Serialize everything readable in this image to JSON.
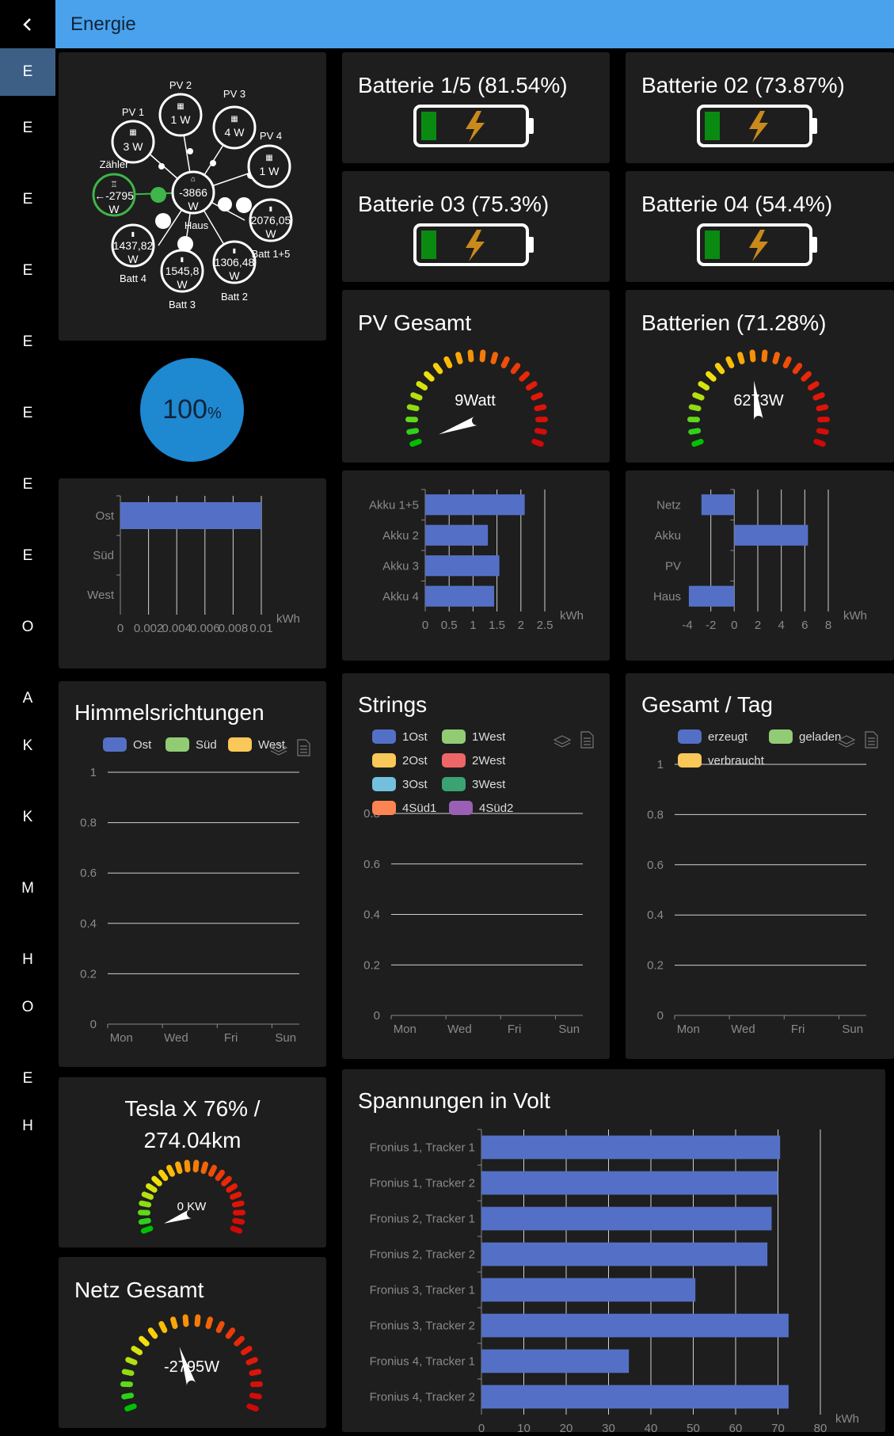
{
  "header": {
    "title": "Energie"
  },
  "sidebar": {
    "items": [
      "E",
      "E",
      "E",
      "E",
      "E",
      "E",
      "E",
      "E",
      "O",
      "A",
      "K",
      "K",
      "M",
      "H",
      "O",
      "E",
      "H"
    ]
  },
  "flow": {
    "pv1": {
      "label": "PV 1",
      "value": "3 W"
    },
    "pv2": {
      "label": "PV 2",
      "value": "1 W"
    },
    "pv3": {
      "label": "PV 3",
      "value": "4 W"
    },
    "pv4": {
      "label": "PV 4",
      "value": "1 W"
    },
    "grid": {
      "label": "Zähler",
      "value": "←-2795",
      "unit": "W"
    },
    "house": {
      "label": "Haus",
      "value": "-3866",
      "unit": "W"
    },
    "batt1": {
      "label": "Batt 1+5",
      "value": "2076,05",
      "unit": "W"
    },
    "batt2": {
      "label": "Batt 2",
      "value": "1306,48",
      "unit": "W"
    },
    "batt3": {
      "label": "Batt 3",
      "value": "1545,8",
      "unit": "W"
    },
    "batt4": {
      "label": "Batt 4",
      "value": "1437,82",
      "unit": "W"
    }
  },
  "batteries": [
    {
      "title": "Batterie 1/5 (81.54%)"
    },
    {
      "title": "Batterie 02 (73.87%)"
    },
    {
      "title": "Batterie 03 (75.3%)"
    },
    {
      "title": "Batterie 04 (54.4%)"
    }
  ],
  "self_consumption": {
    "value": "100",
    "unit": "%"
  },
  "gauges": {
    "pv": {
      "title": "PV Gesamt",
      "value": "9Watt",
      "needle_fraction": 0.0
    },
    "batt": {
      "title": "Batterien (71.28%)",
      "value": "6273W",
      "needle_fraction": 0.47
    },
    "tesla": {
      "title_line1": "Tesla X 76% /",
      "title_line2": "274.04km",
      "value": "0 KW",
      "needle_fraction": 0.0
    },
    "netz": {
      "title": "Netz Gesamt",
      "value": "-2795W",
      "needle_fraction": 0.42
    }
  },
  "colors": {
    "bar": "#5470c6",
    "card": "#1e1e1e",
    "header": "#4aa2ec",
    "accent": "#3d5f86",
    "ring_green": "#3fb54a",
    "bolt": "#c98a1b"
  },
  "chart_data": [
    {
      "type": "bar",
      "orientation": "horizontal",
      "categories": [
        "Ost",
        "Süd",
        "West"
      ],
      "values": [
        0.01,
        0,
        0
      ],
      "xlim": [
        0,
        0.01
      ],
      "xticks": [
        "0",
        "0.002",
        "0.004",
        "0.006",
        "0.008",
        "0.01"
      ],
      "xlabel": "kWh"
    },
    {
      "type": "bar",
      "orientation": "horizontal",
      "categories": [
        "Akku 1+5",
        "Akku 2",
        "Akku 3",
        "Akku 4"
      ],
      "values": [
        2.08,
        1.31,
        1.55,
        1.44
      ],
      "xlim": [
        0,
        2.5
      ],
      "xticks": [
        "0",
        "0.5",
        "1",
        "1.5",
        "2",
        "2.5"
      ],
      "xlabel": "kWh"
    },
    {
      "type": "bar",
      "orientation": "horizontal",
      "categories": [
        "Netz",
        "Akku",
        "PV",
        "Haus"
      ],
      "values": [
        -2.8,
        6.27,
        0.01,
        -3.87
      ],
      "xlim": [
        -4,
        8
      ],
      "xticks": [
        "-4",
        "-2",
        "0",
        "2",
        "4",
        "6",
        "8"
      ],
      "xlabel": "kWh"
    },
    {
      "type": "line",
      "title": "Himmelsrichtungen",
      "series": [
        {
          "name": "Ost"
        },
        {
          "name": "Süd"
        },
        {
          "name": "West"
        }
      ],
      "series_colors": [
        "#5470c6",
        "#91cc75",
        "#fac858"
      ],
      "x": [
        "Mon",
        "Wed",
        "Fri",
        "Sun"
      ],
      "yticks": [
        "0",
        "0.2",
        "0.4",
        "0.6",
        "0.8",
        "1"
      ]
    },
    {
      "type": "line",
      "title": "Strings",
      "series": [
        {
          "name": "1Ost"
        },
        {
          "name": "1West"
        },
        {
          "name": "2Ost"
        },
        {
          "name": "2West"
        },
        {
          "name": "3Ost"
        },
        {
          "name": "3West"
        },
        {
          "name": "4Süd1"
        },
        {
          "name": "4Süd2"
        }
      ],
      "series_colors": [
        "#5470c6",
        "#91cc75",
        "#fac858",
        "#ee6666",
        "#73c0de",
        "#3ba272",
        "#fc8452",
        "#9a60b4"
      ],
      "x": [
        "Mon",
        "Wed",
        "Fri",
        "Sun"
      ],
      "yticks": [
        "0",
        "0.2",
        "0.4",
        "0.6",
        "0.8"
      ]
    },
    {
      "type": "line",
      "title": "Gesamt / Tag",
      "series": [
        {
          "name": "erzeugt"
        },
        {
          "name": "geladen"
        },
        {
          "name": "verbraucht"
        }
      ],
      "series_colors": [
        "#5470c6",
        "#91cc75",
        "#fac858"
      ],
      "x": [
        "Mon",
        "Wed",
        "Fri",
        "Sun"
      ],
      "yticks": [
        "0",
        "0.2",
        "0.4",
        "0.6",
        "0.8",
        "1"
      ]
    },
    {
      "type": "bar",
      "orientation": "horizontal",
      "title": "Spannungen in Volt",
      "categories": [
        "Fronius 1, Tracker 1",
        "Fronius 1, Tracker 2",
        "Fronius 2, Tracker 1",
        "Fronius 2, Tracker 2",
        "Fronius 3, Tracker 1",
        "Fronius 3, Tracker 2",
        "Fronius 4, Tracker 1",
        "Fronius 4, Tracker 2"
      ],
      "values": [
        70.5,
        70,
        68.5,
        67.5,
        50.5,
        72.5,
        34.8,
        72.5
      ],
      "xlim": [
        0,
        80
      ],
      "xticks": [
        "0",
        "10",
        "20",
        "30",
        "40",
        "50",
        "60",
        "70",
        "80"
      ],
      "xlabel": "kWh"
    }
  ]
}
